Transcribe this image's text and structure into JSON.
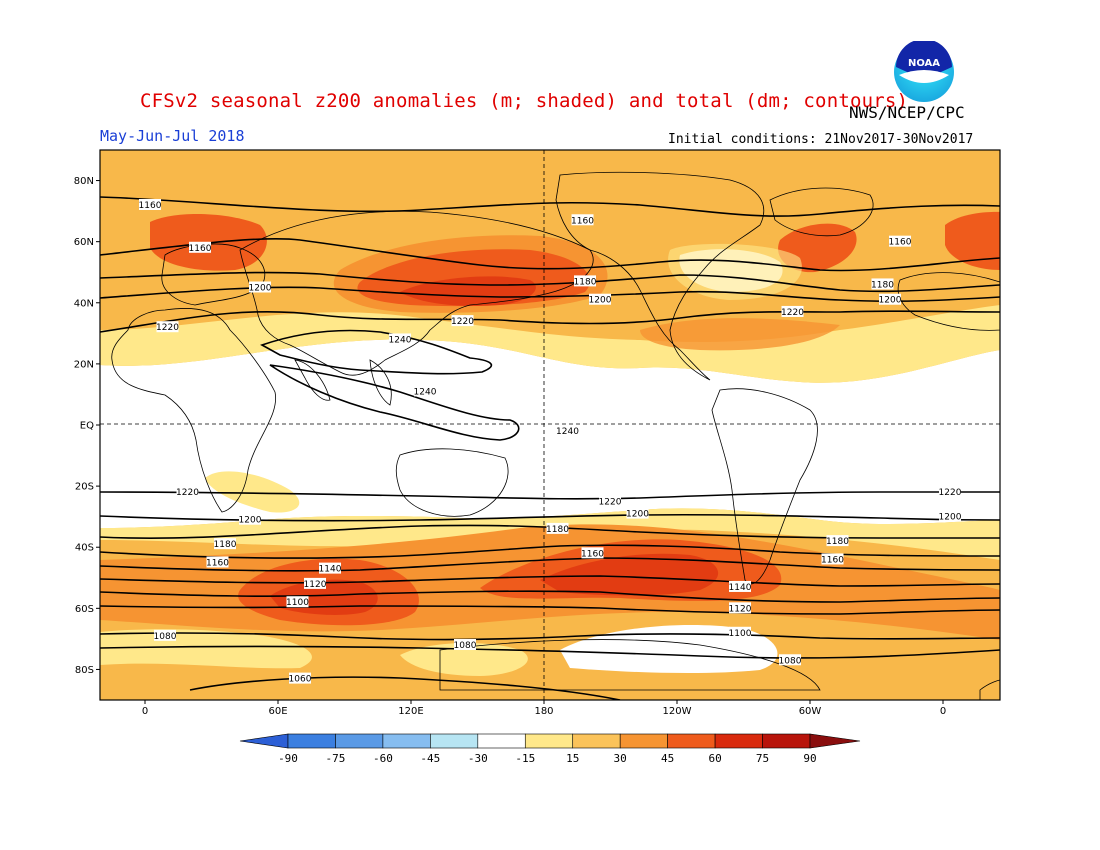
{
  "header": {
    "title": "CFSv2 seasonal z200 anomalies (m; shaded) and total (dm; contours)",
    "agency": "NWS/NCEP/CPC",
    "season": "May-Jun-Jul 2018",
    "initial_conditions": "Initial conditions: 21Nov2017-30Nov2017",
    "logo_text": "NOAA"
  },
  "map": {
    "projection": "cylindrical equidistant",
    "lat_labels": [
      "80N",
      "60N",
      "40N",
      "20N",
      "EQ",
      "20S",
      "40S",
      "60S",
      "80S"
    ],
    "lon_labels": [
      "0",
      "60E",
      "120E",
      "180",
      "120W",
      "60W",
      "0"
    ],
    "contours": {
      "units": "dm",
      "labels": [
        {
          "text": "1160",
          "lon": 0,
          "lat": 72
        },
        {
          "text": "1160",
          "lon": 173,
          "lat": 67
        },
        {
          "text": "1160",
          "lon": 300,
          "lat": 60
        },
        {
          "text": "1160",
          "lon": 20,
          "lat": 58
        },
        {
          "text": "1180",
          "lon": 174,
          "lat": 47
        },
        {
          "text": "1180",
          "lon": 293,
          "lat": 46
        },
        {
          "text": "1200",
          "lon": 44,
          "lat": 45
        },
        {
          "text": "1200",
          "lon": 180,
          "lat": 41
        },
        {
          "text": "1200",
          "lon": 296,
          "lat": 41
        },
        {
          "text": "1220",
          "lon": 7,
          "lat": 32
        },
        {
          "text": "1220",
          "lon": 125,
          "lat": 34
        },
        {
          "text": "1220",
          "lon": 257,
          "lat": 37
        },
        {
          "text": "1240",
          "lon": 100,
          "lat": 28
        },
        {
          "text": "1240",
          "lon": 110,
          "lat": 11
        },
        {
          "text": "1240",
          "lon": 167,
          "lat": -2
        },
        {
          "text": "1220",
          "lon": 15,
          "lat": -22
        },
        {
          "text": "1220",
          "lon": 184,
          "lat": -25
        },
        {
          "text": "1220",
          "lon": 320,
          "lat": -22
        },
        {
          "text": "1200",
          "lon": 40,
          "lat": -31
        },
        {
          "text": "1200",
          "lon": 195,
          "lat": -29
        },
        {
          "text": "1200",
          "lon": 320,
          "lat": -30
        },
        {
          "text": "1180",
          "lon": 30,
          "lat": -39
        },
        {
          "text": "1180",
          "lon": 163,
          "lat": -34
        },
        {
          "text": "1180",
          "lon": 275,
          "lat": -38
        },
        {
          "text": "1160",
          "lon": 27,
          "lat": -45
        },
        {
          "text": "1160",
          "lon": 177,
          "lat": -42
        },
        {
          "text": "1160",
          "lon": 273,
          "lat": -44
        },
        {
          "text": "1140",
          "lon": 72,
          "lat": -47
        },
        {
          "text": "1140",
          "lon": 236,
          "lat": -53
        },
        {
          "text": "1120",
          "lon": 66,
          "lat": -52
        },
        {
          "text": "1120",
          "lon": 236,
          "lat": -60
        },
        {
          "text": "1100",
          "lon": 59,
          "lat": -58
        },
        {
          "text": "1100",
          "lon": 236,
          "lat": -68
        },
        {
          "text": "1080",
          "lon": 6,
          "lat": -69
        },
        {
          "text": "1080",
          "lon": 126,
          "lat": -72
        },
        {
          "text": "1080",
          "lon": 256,
          "lat": -77
        },
        {
          "text": "1060",
          "lon": 60,
          "lat": -83
        }
      ]
    }
  },
  "colorbar": {
    "units": "m",
    "tick_labels": [
      "-90",
      "-75",
      "-60",
      "-45",
      "-30",
      "-15",
      "15",
      "30",
      "45",
      "60",
      "75",
      "90"
    ],
    "colors": [
      "#2c5fd6",
      "#3b7fe0",
      "#5a9ae6",
      "#86bdf0",
      "#b7e5f3",
      "#ffffff",
      "#ffe88a",
      "#fbc35a",
      "#f69432",
      "#ef5b1c",
      "#d92a0d",
      "#b8140b",
      "#8a0e0e"
    ]
  }
}
